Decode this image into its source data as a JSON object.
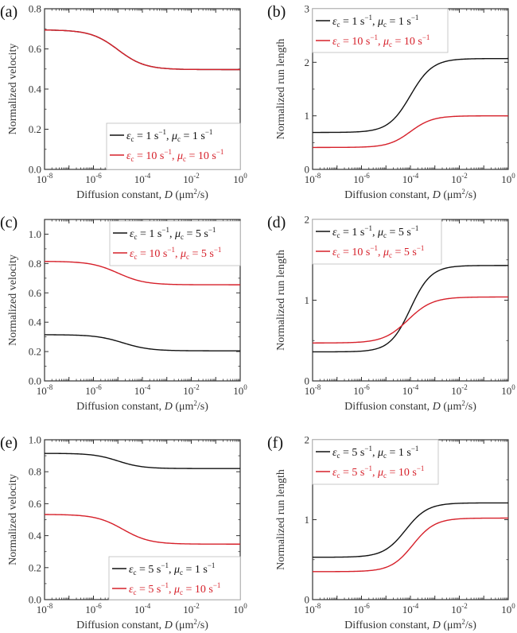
{
  "figure": {
    "colors": {
      "black": "#111111",
      "red": "#d6202a",
      "axis": "#333333",
      "legend_border": "#bbbbbb"
    }
  },
  "chart_data": [
    {
      "type": "line",
      "panel_label": "(a)",
      "xlabel": "Diffusion constant, D (μm²/s)",
      "ylabel": "Normalized velocity",
      "xscale": "log",
      "xlim": [
        1e-08,
        1
      ],
      "ylim": [
        0,
        0.8
      ],
      "yticks": [
        0.0,
        0.2,
        0.4,
        0.6,
        0.8
      ],
      "ytick_labels": [
        "0.0",
        "0.2",
        "0.4",
        "0.6",
        "0.8"
      ],
      "xticks": [
        "10^-8",
        "10^-6",
        "10^-4",
        "10^-2",
        "10^0"
      ],
      "legend_position": "bottom-right",
      "series": [
        {
          "name": "εc = 1 s⁻¹, μc = 1 s⁻¹",
          "eps": "1",
          "mu": "1",
          "color": "black",
          "start": 0.695,
          "end": 0.497,
          "mid_log10_D": -5.0,
          "width": 0.55
        },
        {
          "name": "εc = 10 s⁻¹, μc = 10 s⁻¹",
          "eps": "10",
          "mu": "10",
          "color": "red",
          "start": 0.695,
          "end": 0.497,
          "mid_log10_D": -5.0,
          "width": 0.55
        }
      ]
    },
    {
      "type": "line",
      "panel_label": "(b)",
      "xlabel": "Diffusion constant, D (μm²/s)",
      "ylabel": "Normalized run length",
      "xscale": "log",
      "xlim": [
        1e-08,
        1
      ],
      "ylim": [
        0,
        3
      ],
      "yticks": [
        0,
        1,
        2,
        3
      ],
      "ytick_labels": [
        "0",
        "1",
        "2",
        "3"
      ],
      "xticks": [
        "10^-8",
        "10^-6",
        "10^-4",
        "10^-2",
        "10^0"
      ],
      "legend_position": "top-left",
      "series": [
        {
          "name": "εc = 1 s⁻¹, μc = 1 s⁻¹",
          "eps": "1",
          "mu": "1",
          "color": "black",
          "start": 0.69,
          "end": 2.07,
          "mid_log10_D": -4.0,
          "width": 0.45
        },
        {
          "name": "εc = 10 s⁻¹, μc = 10 s⁻¹",
          "eps": "10",
          "mu": "10",
          "color": "red",
          "start": 0.41,
          "end": 1.0,
          "mid_log10_D": -4.0,
          "width": 0.45
        }
      ]
    },
    {
      "type": "line",
      "panel_label": "(c)",
      "xlabel": "Diffusion constant, D (μm²/s)",
      "ylabel": "Normalized velocity",
      "xscale": "log",
      "xlim": [
        1e-08,
        1
      ],
      "ylim": [
        0,
        1.1
      ],
      "yticks": [
        0.0,
        0.2,
        0.4,
        0.6,
        0.8,
        1.0
      ],
      "ytick_labels": [
        "0.0",
        "0.2",
        "0.4",
        "0.6",
        "0.8",
        "1.0"
      ],
      "xticks": [
        "10^-8",
        "10^-6",
        "10^-4",
        "10^-2",
        "10^0"
      ],
      "legend_position": "top-right",
      "series": [
        {
          "name": "εc = 1 s⁻¹, μc = 5 s⁻¹",
          "eps": "1",
          "mu": "5",
          "color": "black",
          "start": 0.315,
          "end": 0.205,
          "mid_log10_D": -4.8,
          "width": 0.55
        },
        {
          "name": "εc = 10 s⁻¹, μc = 5 s⁻¹",
          "eps": "10",
          "mu": "5",
          "color": "red",
          "start": 0.815,
          "end": 0.655,
          "mid_log10_D": -5.0,
          "width": 0.55
        }
      ]
    },
    {
      "type": "line",
      "panel_label": "(d)",
      "xlabel": "Diffusion constant, D (μm²/s)",
      "ylabel": "Normalized run length",
      "xscale": "log",
      "xlim": [
        1e-08,
        1
      ],
      "ylim": [
        0,
        2
      ],
      "yticks": [
        0,
        1,
        2
      ],
      "ytick_labels": [
        "0",
        "1",
        "2"
      ],
      "xticks": [
        "10^-8",
        "10^-6",
        "10^-4",
        "10^-2",
        "10^0"
      ],
      "legend_position": "top-left",
      "series": [
        {
          "name": "εc = 1 s⁻¹, μc = 5 s⁻¹",
          "eps": "1",
          "mu": "5",
          "color": "black",
          "start": 0.36,
          "end": 1.43,
          "mid_log10_D": -4.0,
          "width": 0.42
        },
        {
          "name": "εc = 10 s⁻¹, μc = 5 s⁻¹",
          "eps": "10",
          "mu": "5",
          "color": "red",
          "start": 0.47,
          "end": 1.04,
          "mid_log10_D": -4.1,
          "width": 0.5
        }
      ]
    },
    {
      "type": "line",
      "panel_label": "(e)",
      "xlabel": "Diffusion constant, D (μm²/s)",
      "ylabel": "Normalized velocity",
      "xscale": "log",
      "xlim": [
        1e-08,
        1
      ],
      "ylim": [
        0,
        1.0
      ],
      "yticks": [
        0.0,
        0.2,
        0.4,
        0.6,
        0.8,
        1.0
      ],
      "ytick_labels": [
        "0.0",
        "0.2",
        "0.4",
        "0.6",
        "0.8",
        "1.0"
      ],
      "xticks": [
        "10^-8",
        "10^-6",
        "10^-4",
        "10^-2",
        "10^0"
      ],
      "legend_position": "bottom-right",
      "series": [
        {
          "name": "εc = 5 s⁻¹, μc = 1 s⁻¹",
          "eps": "5",
          "mu": "1",
          "color": "black",
          "start": 0.915,
          "end": 0.82,
          "mid_log10_D": -5.0,
          "width": 0.5
        },
        {
          "name": "εc = 5 s⁻¹, μc = 10 s⁻¹",
          "eps": "5",
          "mu": "10",
          "color": "red",
          "start": 0.533,
          "end": 0.347,
          "mid_log10_D": -4.8,
          "width": 0.55
        }
      ]
    },
    {
      "type": "line",
      "panel_label": "(f)",
      "xlabel": "Diffusion constant, D (μm²/s)",
      "ylabel": "Normalized run length",
      "xscale": "log",
      "xlim": [
        1e-08,
        1
      ],
      "ylim": [
        0,
        2
      ],
      "yticks": [
        0,
        1,
        2
      ],
      "ytick_labels": [
        "0",
        "1",
        "2"
      ],
      "xticks": [
        "10^-8",
        "10^-6",
        "10^-4",
        "10^-2",
        "10^0"
      ],
      "legend_position": "top-left",
      "series": [
        {
          "name": "εc = 5 s⁻¹, μc = 1 s⁻¹",
          "eps": "5",
          "mu": "1",
          "color": "black",
          "start": 0.53,
          "end": 1.21,
          "mid_log10_D": -4.2,
          "width": 0.45
        },
        {
          "name": "εc = 5 s⁻¹, μc = 10 s⁻¹",
          "eps": "5",
          "mu": "10",
          "color": "red",
          "start": 0.35,
          "end": 1.02,
          "mid_log10_D": -3.9,
          "width": 0.45
        }
      ]
    }
  ]
}
